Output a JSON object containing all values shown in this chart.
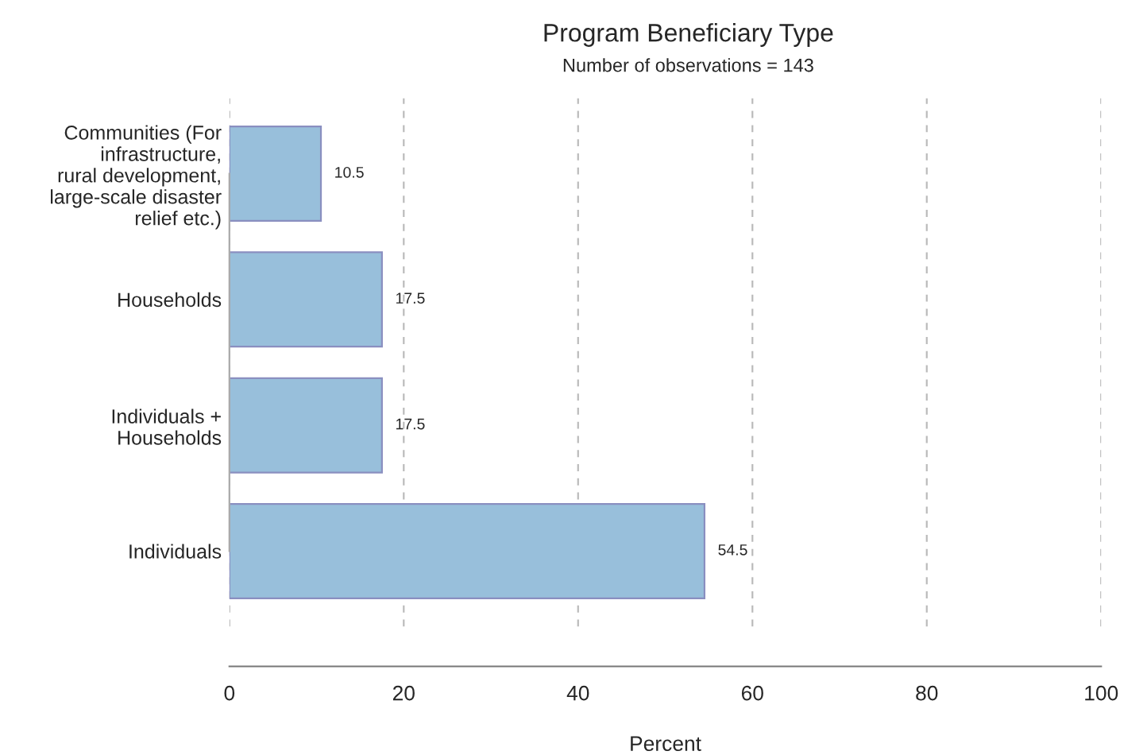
{
  "chart_data": {
    "type": "bar",
    "orientation": "horizontal",
    "title": "Program Beneficiary Type",
    "subtitle": "Number of observations = 143",
    "xlabel": "Percent",
    "categories": [
      "Communities (For\ninfrastructure,\nrural development,\nlarge-scale disaster\nrelief etc.)",
      "Households",
      "Individuals +\nHouseholds",
      "Individuals"
    ],
    "values": [
      10.5,
      17.5,
      17.5,
      54.5
    ],
    "color": "#98bfdb",
    "data_labels": true,
    "xlim": [
      0,
      100
    ],
    "xticks": [
      0,
      20,
      40,
      60,
      80,
      100
    ],
    "grid": "x",
    "legend": false
  }
}
